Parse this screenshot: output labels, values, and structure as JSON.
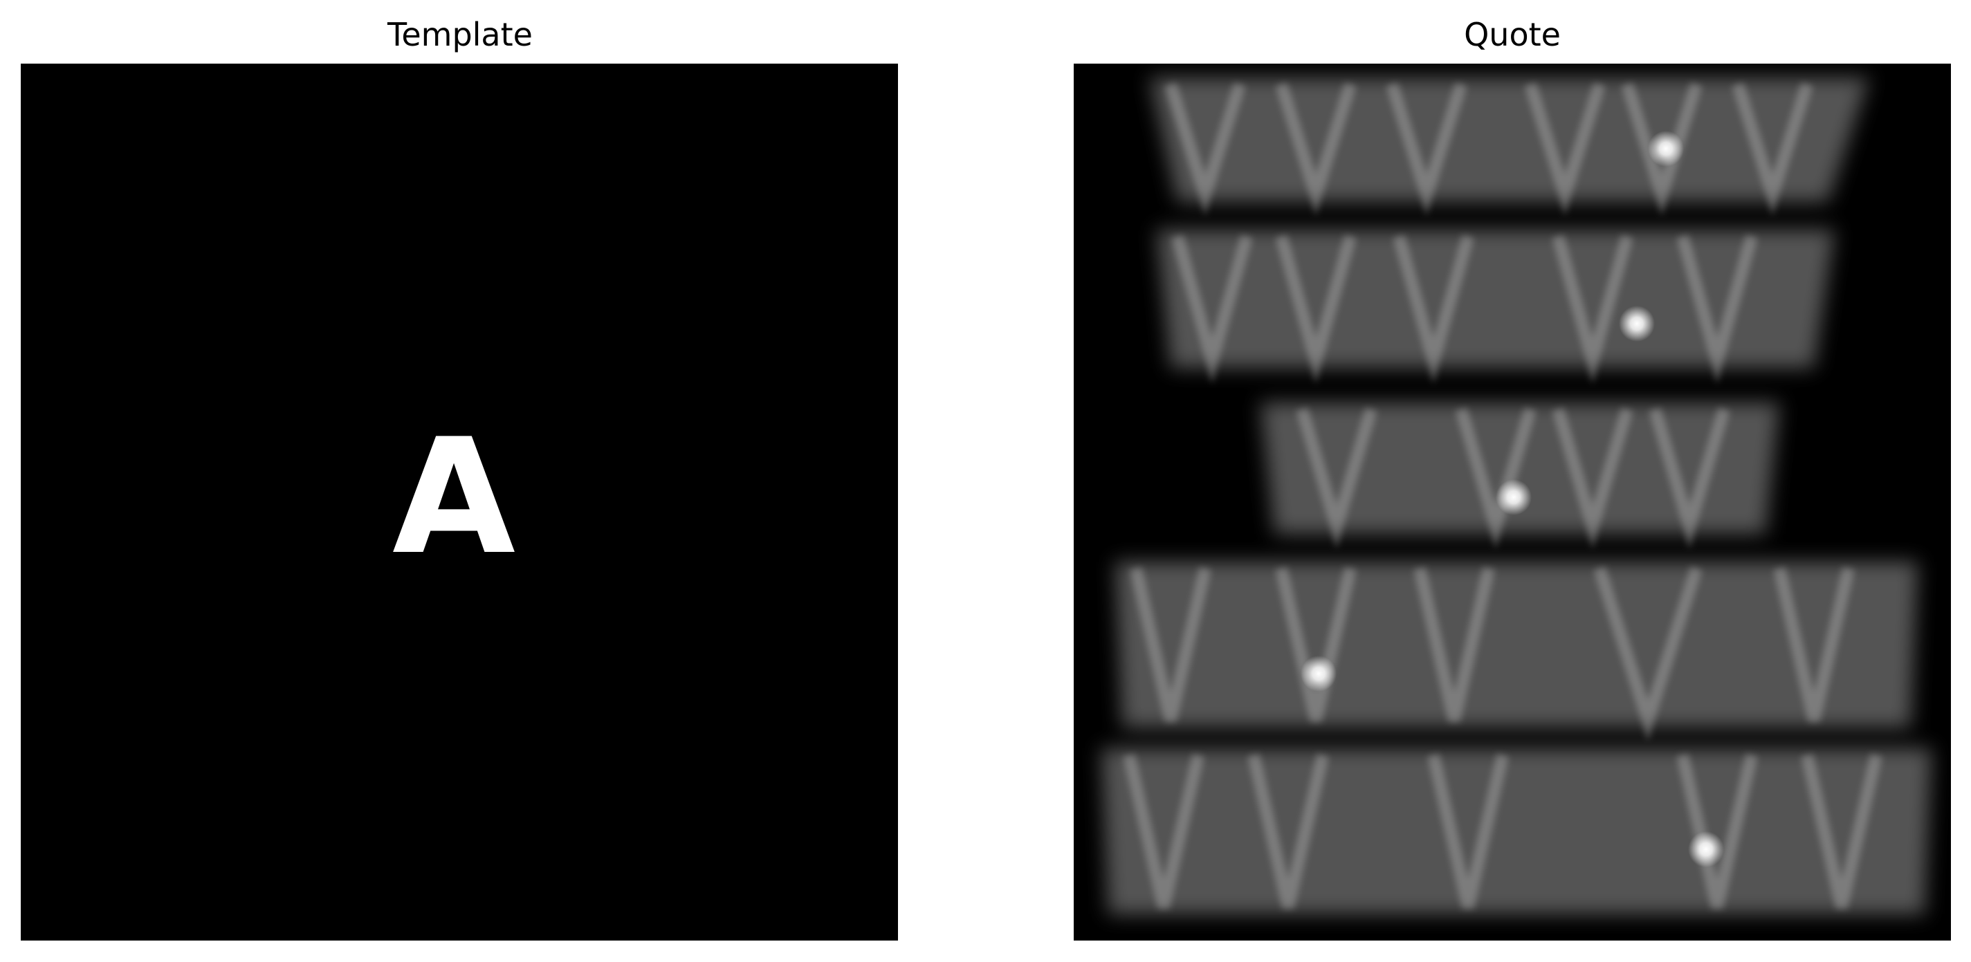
{
  "figure": {
    "panels": [
      {
        "title": "Template",
        "content": "A",
        "background": "#000000",
        "foreground": "#ffffff"
      },
      {
        "title": "Quote",
        "background": "#000000",
        "foreground": "#bdbdbd",
        "peak_color": "#ffffff"
      }
    ]
  }
}
